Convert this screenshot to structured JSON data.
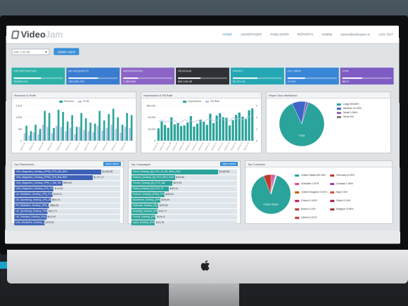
{
  "logo": {
    "text_a": "Video",
    "text_b": "Jam"
  },
  "nav": [
    "HOME",
    "ADVERTISER",
    "PUBLISHER",
    "REPORTS",
    "ADMIN",
    "admin@videojam.tv",
    "LOG OUT"
  ],
  "controls": {
    "range": "DAY 1-02-08",
    "update_label": "Update report"
  },
  "stats": [
    {
      "label": "OPPORTUNITIES",
      "value": "35,853,014",
      "color": "#2db1a6",
      "progress": 0.55
    },
    {
      "label": "AD REQUESTS",
      "value": "300,226,734",
      "color": "#3a7dd0",
      "progress": 0.6
    },
    {
      "label": "IMPRESSIONS",
      "value": "1,369,053",
      "color": "#8b64c6",
      "progress": 0.3
    },
    {
      "label": "REVENUE",
      "value": "$32,145.26",
      "color": "#2e3236",
      "progress": 0.45
    },
    {
      "label": "PROFIT",
      "value": "$1,371.51",
      "color": "#24a7b4",
      "progress": 0.5
    },
    {
      "label": "FILL RATE",
      "value": "4.01%",
      "color": "#3a86d6",
      "progress": 0.35
    },
    {
      "label": "CPM",
      "value": "$5.07",
      "color": "#7f5cc3",
      "progress": 0.4
    }
  ],
  "panels": {
    "revenue": "Revenue & Profit",
    "impressions": "Impressions & Fill Rate",
    "player": "Player Size distribution",
    "placements": "Top Placements",
    "campaigns": "Top Campaigns",
    "countries": "Top Countries",
    "open_report": "Open report"
  },
  "chart_data": [
    {
      "type": "bar",
      "title": "Revenue & Profit",
      "series": [
        {
          "name": "Revenue",
          "values": [
            1400,
            900,
            1500,
            1100,
            2800,
            2600,
            1200,
            2900,
            2700,
            1800,
            2400,
            1300,
            2600,
            2100,
            1700,
            1600,
            2800,
            1900,
            2500,
            3000,
            2200,
            1500,
            2600,
            2400
          ]
        },
        {
          "name": "Profit",
          "values": [
            700,
            500,
            800,
            600,
            1500,
            1300,
            700,
            1400,
            1300,
            900,
            1200,
            600,
            1300,
            1000,
            900,
            800,
            1400,
            950,
            1200,
            1500,
            1100,
            750,
            1300,
            1200
          ]
        }
      ],
      "yticks": [
        "2,514",
        "1,506",
        "758",
        "0"
      ],
      "ylim": [
        0,
        3300
      ]
    },
    {
      "type": "bar",
      "title": "Impressions & Fill Rate",
      "series": [
        {
          "name": "Impressions",
          "values": [
            21000,
            33000,
            27000,
            22000,
            40000,
            28000,
            30000,
            25000,
            26000,
            31000,
            42000,
            24000,
            29000,
            36000,
            33000,
            27000,
            46000,
            30000,
            43000,
            47000,
            40000,
            39000,
            26000,
            35000,
            44000,
            48000,
            41000,
            37000,
            52000,
            55000
          ]
        },
        {
          "name": "Fill Rate",
          "values": [
            3.2,
            3.6,
            3.1,
            3.3,
            3.5,
            3.4,
            3.0,
            3.2,
            3.6,
            3.3,
            3.4,
            3.1,
            3.5,
            3.3,
            3.2,
            3.6,
            3.7,
            3.4,
            3.5,
            3.8,
            3.6,
            3.5,
            3.3,
            3.9,
            3.7,
            3.8,
            3.6,
            3.9,
            4.1,
            4.3
          ]
        }
      ],
      "yticks": [
        "$45,000",
        "30,000",
        "15,000",
        "0"
      ],
      "y2ticks": [
        "6",
        "4",
        "2",
        "0"
      ],
      "ylim": [
        0,
        60000
      ]
    },
    {
      "type": "pie",
      "title": "Player Size distribution",
      "slices": [
        {
          "name": "Large 89.85%",
          "value": 89.85,
          "color": "#2aa39a"
        },
        {
          "name": "Medium 10.15%",
          "value": 10.15,
          "color": "#3d66c4"
        },
        {
          "name": "Small 1.96%",
          "value": 1.96,
          "color": "#8b64c6"
        },
        {
          "name": "None 0%",
          "value": 0,
          "color": "#7d7d7d"
        }
      ],
      "center_label": "Large"
    }
  ],
  "placements": [
    {
      "label": "USA_Magnetfox_Desktop_(PPM)_PCS_BM_BKS",
      "value": "$1,640.98",
      "p": 1.0
    },
    {
      "label": "USA_Magnetfox_Desktop_(PPM)_20%_BM_BKS",
      "value": "$1,477.17",
      "p": 0.9
    },
    {
      "label": "USA_Magnetfox_Desktop_PPM_1_BM_2M",
      "value": "$905.89",
      "p": 0.55
    },
    {
      "label": "USA_Magnetfox_Desktop_(PS)_PCS_BM",
      "value": "$744.39",
      "p": 0.45
    },
    {
      "label": "UK_Mediatime_Desktop_(PS)_PCS",
      "value": "$722.07",
      "p": 0.44
    },
    {
      "label": "DE_Sportsmag_Desktop_(PS)_BM",
      "value": "$691.01",
      "p": 0.42
    },
    {
      "label": "FR_Mediatime_Desktop_(PS)_BM",
      "value": "$654.26",
      "p": 0.4
    },
    {
      "label": "UK_Sportsmag_Desktop_PPM_BM",
      "value": "$623.73",
      "p": 0.38
    },
    {
      "label": "US_Videojam_Desktop_(PS)_BM",
      "value": "$610.57",
      "p": 0.37
    },
    {
      "label": "USA_Mediatime_Desktop_(PS)",
      "value": "$579.62",
      "p": 0.35
    }
  ],
  "campaigns": [
    {
      "label": "Senso_Desktop_[S]_PCS_01_S5_DEM_2016",
      "value": "$1,699.96",
      "p": 1.0
    },
    {
      "label": "Rubicon_Desktop_[S]_PCS_BKS_2016",
      "value": "$478.66",
      "p": 0.5
    },
    {
      "label": "Tremor_Desktop_[S]_PCS_BM",
      "value": "$479.25",
      "p": 0.47
    },
    {
      "label": "Telaria_Desktop_[S]_PCS_01",
      "value": "$429.14",
      "p": 0.43
    },
    {
      "label": "Rubicon_Desktop_[PPM]_PCS",
      "value": "$360.51",
      "p": 0.38
    },
    {
      "label": "Beachfront_Desktop_[PPM]_PCS",
      "value": "$299.60",
      "p": 0.33
    },
    {
      "label": "Optimatic_Desktop_[S]_BM",
      "value": "$275.32",
      "p": 0.31
    },
    {
      "label": "Smartclip_Desktop_[PPM]_PCS",
      "value": "$262.07",
      "p": 0.3
    },
    {
      "label": "Tremor_Desktop_[PPM]_PCS",
      "value": "$234.01",
      "p": 0.28
    },
    {
      "label": "Spotx_Desktop_[PPM]_PCS_BM",
      "value": "$231.69",
      "p": 0.27
    }
  ],
  "countries": [
    {
      "name": "United States 89.16%",
      "value": 89.16,
      "color": "#2aa39a"
    },
    {
      "name": "Germany 6.25%",
      "value": 6.25,
      "color": "#c0392b"
    },
    {
      "name": "Australia 1.87%",
      "value": 1.87,
      "color": "#e84393"
    },
    {
      "name": "Canada 1.38%",
      "value": 1.38,
      "color": "#8e44ad"
    },
    {
      "name": "United Kingdom 0.51%",
      "value": 0.51,
      "color": "#d35400"
    },
    {
      "name": "Italy 0.3%",
      "value": 0.3,
      "color": "#e74c3c"
    },
    {
      "name": "France 0.16%",
      "value": 0.16,
      "color": "#c2185b"
    },
    {
      "name": "Spain 0.14%",
      "value": 0.14,
      "color": "#ad1457"
    },
    {
      "name": "Brazil 0.13%",
      "value": 0.13,
      "color": "#b03a2e"
    },
    {
      "name": "Belgium 0.08%",
      "value": 0.08,
      "color": "#a93226"
    },
    {
      "name": "Others 0.07%",
      "value": 0.07,
      "color": "#c0392b"
    }
  ],
  "countries_center": "United States"
}
